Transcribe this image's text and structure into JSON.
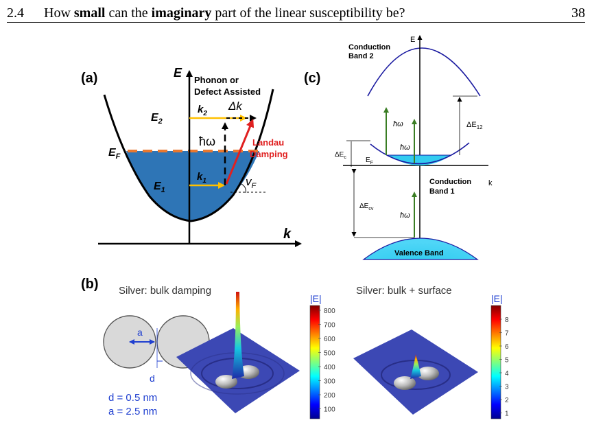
{
  "header": {
    "section": "2.4",
    "title_parts": [
      "How ",
      "small",
      " can the ",
      "imaginary",
      " part of the linear susceptibility be?"
    ],
    "page": "38"
  },
  "panel_a": {
    "label": "(a)",
    "e_axis": "E",
    "k_axis": "k",
    "phonon": [
      "Phonon or",
      "Defect Assisted"
    ],
    "e2": "E",
    "e2_sub": "2",
    "ef": "E",
    "ef_sub": "F",
    "e1": "E",
    "e1_sub": "1",
    "k2": "k",
    "k2_sub": "2",
    "k1": "k",
    "k1_sub": "1",
    "delta_k": "Δk",
    "hw": "ħω",
    "landau": [
      "Landau",
      "Damping"
    ],
    "vf": "v",
    "vf_sub": "F",
    "colors": {
      "fill": "#2e75b6",
      "fermi": "#e9782f",
      "transition": "#ffc000",
      "landau": "#e02020"
    }
  },
  "panel_c": {
    "label": "(c)",
    "e_axis": "E",
    "k_axis": "k",
    "cb2": [
      "Conduction",
      "Band 2"
    ],
    "cb1": [
      "Conduction",
      "Band 1"
    ],
    "valence": "Valence Band",
    "de12": "ΔE",
    "de12_sub": "12",
    "dec": "ΔE",
    "dec_sub": "c",
    "ef": "E",
    "ef_sub": "F",
    "decv": "ΔE",
    "decv_sub": "cv",
    "hw": "ħω",
    "colors": {
      "band": "#1a1aa0",
      "fill": "#33ccf0",
      "arrow": "#3a7d24"
    }
  },
  "panel_b": {
    "label": "(b)",
    "left_title": "Silver: bulk damping",
    "right_title": "Silver: bulk + surface",
    "a_label": "a",
    "d_label": "d",
    "d_value": "d = 0.5 nm",
    "a_value": "a = 2.5 nm",
    "colorbar_title": "|E|",
    "left_ticks": [
      "800",
      "700",
      "600",
      "500",
      "400",
      "300",
      "200",
      "100"
    ],
    "right_ticks": [
      "8",
      "7",
      "6",
      "5",
      "4",
      "3",
      "2",
      "1"
    ]
  }
}
